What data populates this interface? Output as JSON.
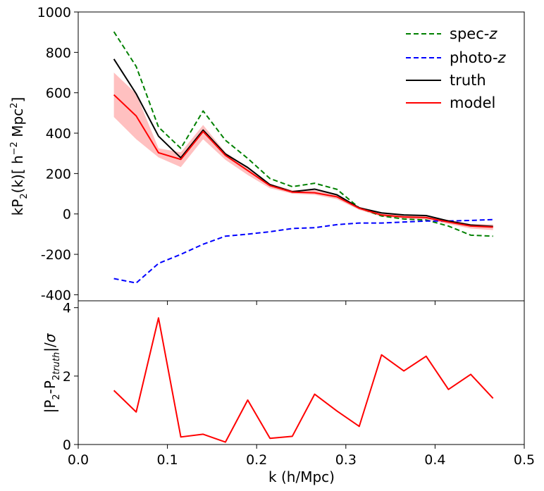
{
  "chart_data": [
    {
      "type": "line",
      "panel": "top",
      "xlim": [
        0.0,
        0.5
      ],
      "ylim": [
        -430,
        1000
      ],
      "yticks": [
        -400,
        -200,
        0,
        200,
        400,
        600,
        800,
        1000
      ],
      "ytick_labels": [
        "-400",
        "-200",
        "0",
        "200",
        "400",
        "600",
        "800",
        "1000"
      ],
      "ylabel": {
        "text": "kP2(k)[ h−2 Mpc2]",
        "p": "kP",
        "sub": "2",
        "k": "(k)[ h",
        "sup1": "−2",
        "mpc": " Mpc",
        "sup2": "2",
        "close": "]"
      },
      "legend_placement": "upper right",
      "x": [
        0.04,
        0.065,
        0.09,
        0.115,
        0.14,
        0.165,
        0.19,
        0.215,
        0.24,
        0.265,
        0.29,
        0.315,
        0.34,
        0.365,
        0.39,
        0.415,
        0.44,
        0.465
      ],
      "series": [
        {
          "name": "spec-",
          "name_italic": "z",
          "style": "dashed",
          "color": "#008000",
          "values": [
            902,
            730,
            430,
            325,
            510,
            365,
            275,
            175,
            135,
            152,
            122,
            30,
            -10,
            -25,
            -30,
            -60,
            -105,
            -110
          ]
        },
        {
          "name": "photo-",
          "name_italic": "z",
          "style": "dashed",
          "color": "#0000ff",
          "values": [
            -320,
            -342,
            -245,
            -200,
            -150,
            -110,
            -100,
            -88,
            -72,
            -68,
            -53,
            -45,
            -45,
            -40,
            -35,
            -35,
            -32,
            -28
          ]
        },
        {
          "name": "truth",
          "style": "solid",
          "color": "#000000",
          "values": [
            767,
            595,
            385,
            278,
            415,
            297,
            230,
            145,
            110,
            123,
            95,
            30,
            5,
            -5,
            -8,
            -35,
            -55,
            -62
          ]
        },
        {
          "name": "model",
          "style": "solid",
          "color": "#ff0000",
          "values": [
            590,
            485,
            303,
            270,
            408,
            290,
            215,
            140,
            108,
            105,
            85,
            28,
            -5,
            -15,
            -18,
            -40,
            -60,
            -65
          ],
          "band_lower": [
            480,
            370,
            280,
            232,
            370,
            268,
            193,
            127,
            100,
            95,
            73,
            20,
            -13,
            -23,
            -28,
            -50,
            -72,
            -80
          ],
          "band_upper": [
            700,
            595,
            325,
            305,
            440,
            305,
            230,
            150,
            118,
            118,
            95,
            36,
            3,
            -7,
            -10,
            -30,
            -50,
            -52
          ],
          "band_color": "#ffc0c0"
        }
      ]
    },
    {
      "type": "line",
      "panel": "bottom",
      "xlim": [
        0.0,
        0.5
      ],
      "ylim": [
        0,
        4.2
      ],
      "xticks": [
        0.0,
        0.1,
        0.2,
        0.3,
        0.4,
        0.5
      ],
      "xtick_labels": [
        "0.0",
        "0.1",
        "0.2",
        "0.3",
        "0.4",
        "0.5"
      ],
      "yticks": [
        0,
        2,
        4
      ],
      "ytick_labels": [
        "0",
        "2",
        "4"
      ],
      "xlabel": "k (h/Mpc)",
      "ylabel": {
        "text": "|P2-P2truth|/σ",
        "open": "|P",
        "sub1": "2",
        "mid": "-P",
        "sub2": "2",
        "sub3": "truth",
        "close": "|/",
        "sigma": "σ"
      },
      "x": [
        0.04,
        0.065,
        0.09,
        0.115,
        0.14,
        0.165,
        0.19,
        0.215,
        0.24,
        0.265,
        0.29,
        0.315,
        0.34,
        0.365,
        0.39,
        0.415,
        0.44,
        0.465
      ],
      "series": [
        {
          "style": "solid",
          "color": "#ff0000",
          "values": [
            1.58,
            0.95,
            3.7,
            0.22,
            0.3,
            0.07,
            1.3,
            0.18,
            0.24,
            1.47,
            0.98,
            0.53,
            2.62,
            2.15,
            2.58,
            1.61,
            2.05,
            1.35
          ]
        }
      ]
    }
  ]
}
